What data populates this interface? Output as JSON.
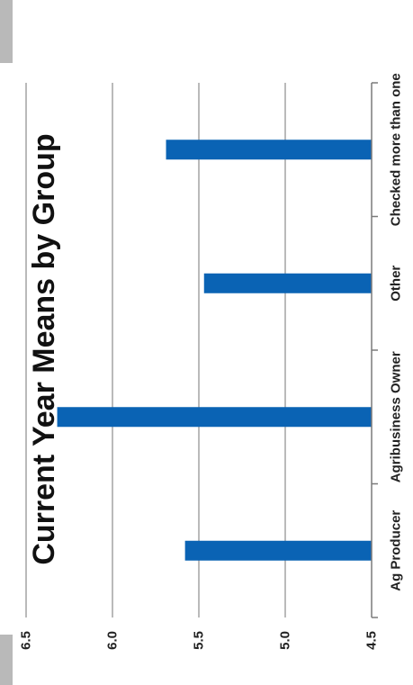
{
  "chart_data": {
    "type": "bar",
    "orientation": "horizontal",
    "rotation": "rotated 90 degrees clockwise",
    "title": "Current Year Means by Group",
    "xlabel": "",
    "ylabel": "",
    "categories": [
      "Ag Producer",
      "Agribusiness Owner",
      "Other",
      "Checked more than one"
    ],
    "values": [
      5.58,
      6.32,
      5.47,
      5.69
    ],
    "ylim": [
      4.5,
      6.5
    ],
    "yticks": [
      "4.5",
      "5.0",
      "5.5",
      "6.0",
      "6.5"
    ],
    "grid": true,
    "legend": "none",
    "bar_color": "#0a63b4",
    "grid_color": "#8c8c8c"
  }
}
